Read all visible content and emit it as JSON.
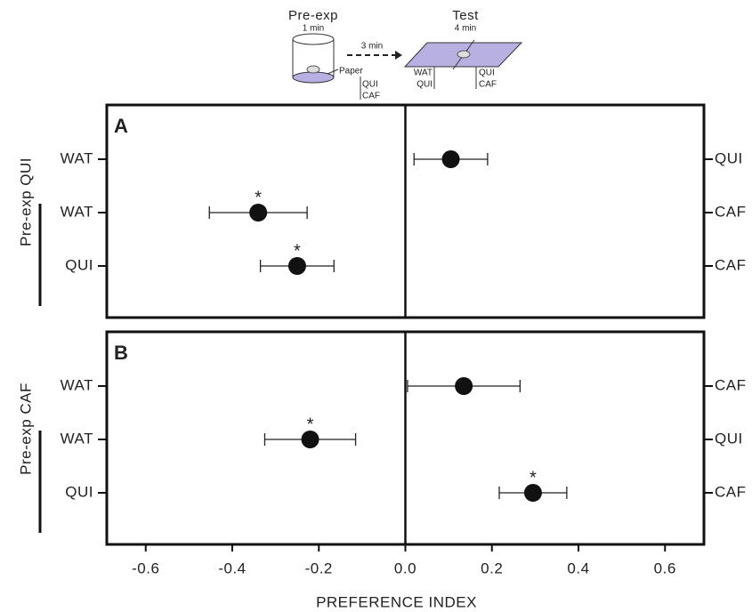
{
  "header": {
    "pre_exp": "Pre-exp",
    "pre_exp_time": "1 min",
    "paper": "Paper",
    "paper_labels": [
      "QUI",
      "CAF"
    ],
    "interval": "3 min",
    "test": "Test",
    "test_time": "4 min",
    "test_left": [
      "WAT",
      "QUI"
    ],
    "test_right": [
      "QUI",
      "CAF"
    ]
  },
  "chart_data": [
    {
      "type": "scatter",
      "panel": "A",
      "group_label": "Pre-exp QUI",
      "categories": [
        "WAT",
        "WAT",
        "QUI"
      ],
      "right_labels": [
        "QUI",
        "CAF",
        "CAF"
      ],
      "values": [
        0.105,
        -0.34,
        -0.25
      ],
      "errors": [
        0.085,
        0.113,
        0.085
      ],
      "stars": [
        null,
        "*",
        "*"
      ],
      "color": "#111111",
      "xlim": [
        -0.69,
        0.69
      ]
    },
    {
      "type": "scatter",
      "panel": "B",
      "group_label": "Pre-exp CAF",
      "categories": [
        "WAT",
        "WAT",
        "QUI"
      ],
      "right_labels": [
        "CAF",
        "QUI",
        "CAF"
      ],
      "values": [
        0.135,
        -0.22,
        0.295
      ],
      "errors": [
        0.13,
        0.105,
        0.078
      ],
      "stars": [
        null,
        "*",
        "*"
      ],
      "color": "#111111",
      "xlim": [
        -0.69,
        0.69
      ],
      "xlabel": "PREFERENCE INDEX",
      "xticks": [
        -0.6,
        -0.4,
        -0.2,
        {
          "value": 0,
          "label": "0.0"
        },
        0.2,
        0.4,
        0.6
      ]
    }
  ]
}
